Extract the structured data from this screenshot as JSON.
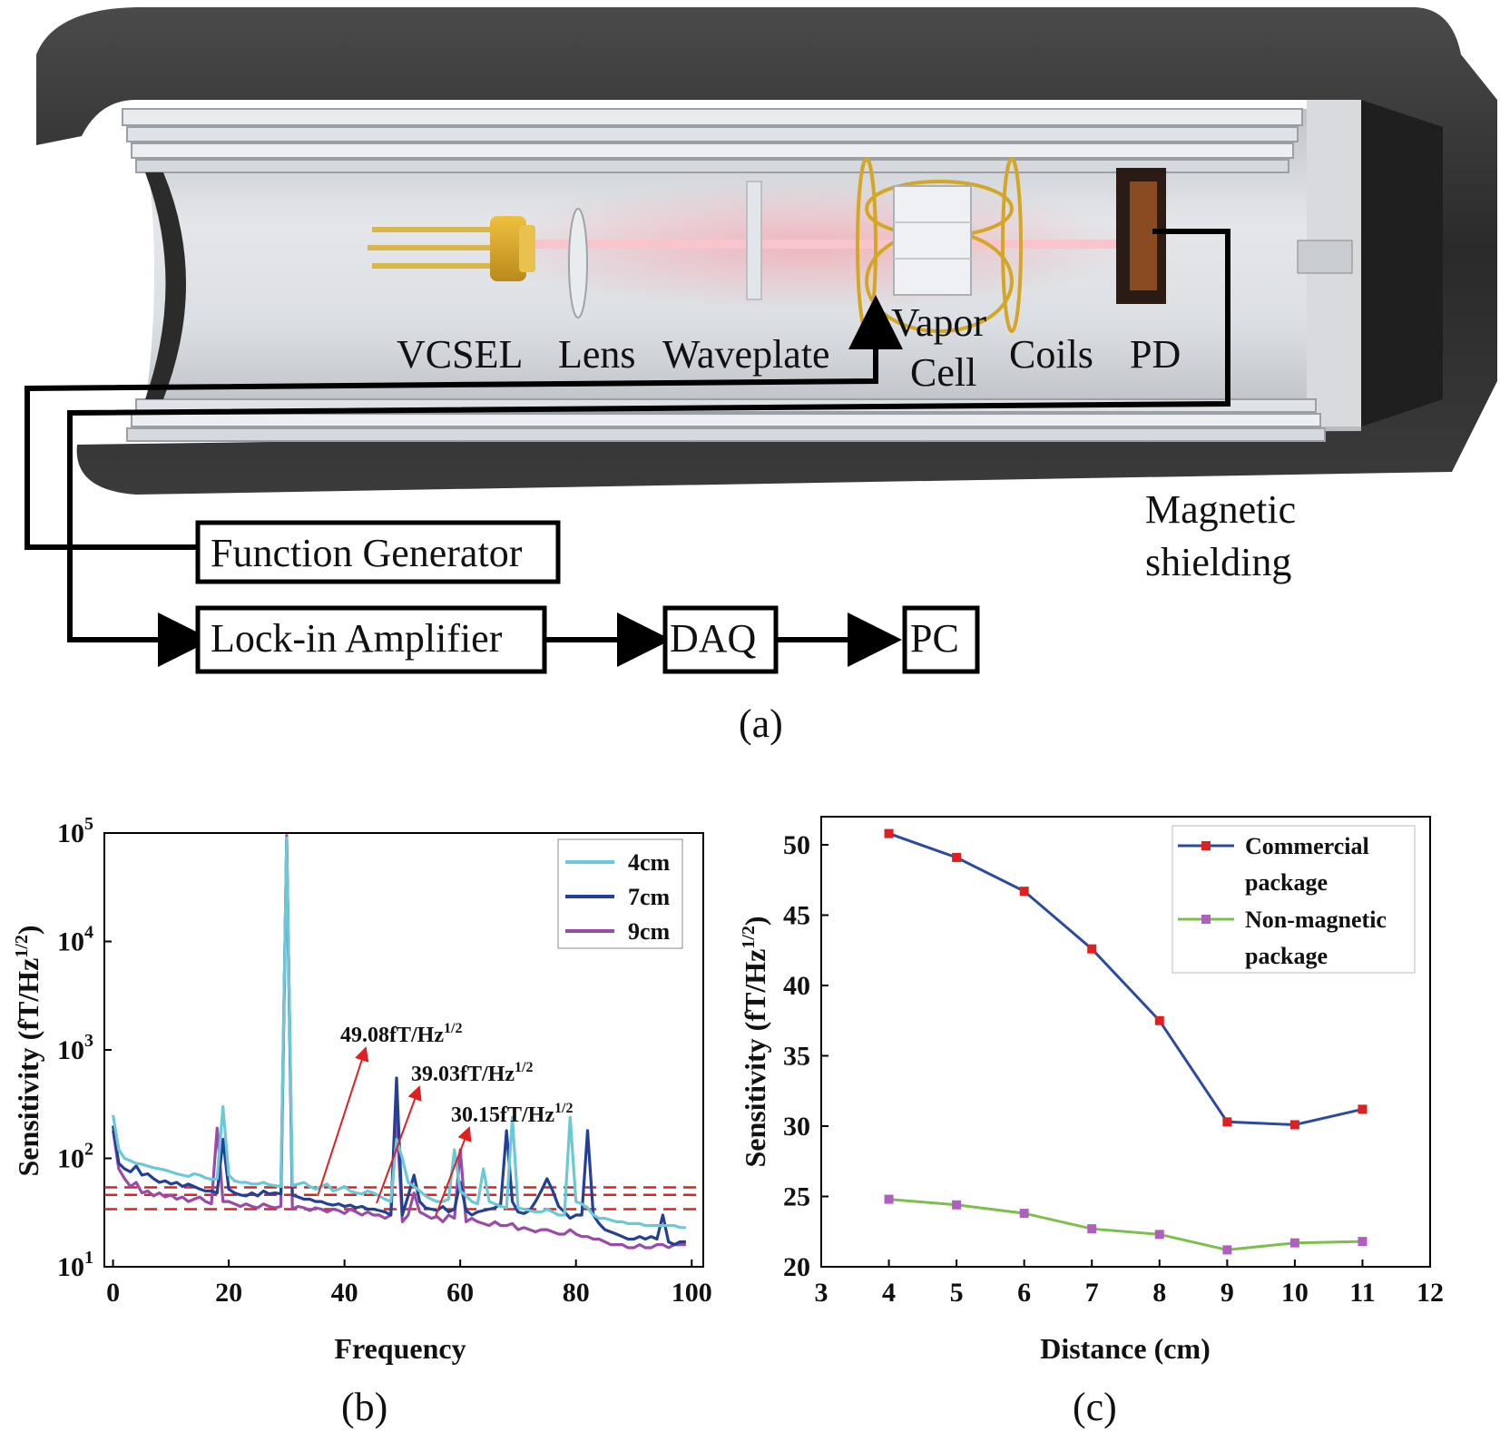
{
  "panel_a": {
    "component_labels": [
      "VCSEL",
      "Lens",
      "Waveplate",
      "Vapor",
      "Cell",
      "Coils",
      "PD"
    ],
    "shield_label": [
      "Magnetic",
      "shielding"
    ],
    "boxes": {
      "function_generator": "Function Generator",
      "lock_in": "Lock-in Amplifier",
      "daq": "DAQ",
      "pc": "PC"
    },
    "caption": "(a)"
  },
  "panel_b_caption": "(b)",
  "panel_c_caption": "(c)",
  "chart_data": [
    {
      "type": "line",
      "panel": "(b)",
      "xlabel": "Frequency",
      "ylabel": "Sensitivity (fT/Hz1/2)",
      "yscale": "log",
      "xlim": [
        0,
        100
      ],
      "ylim": [
        10,
        100000
      ],
      "xticks": [
        "0",
        "20",
        "40",
        "60",
        "80",
        "100"
      ],
      "yticks": [
        {
          "base": "10",
          "exp": "1"
        },
        {
          "base": "10",
          "exp": "2"
        },
        {
          "base": "10",
          "exp": "3"
        },
        {
          "base": "10",
          "exp": "4"
        },
        {
          "base": "10",
          "exp": "5"
        }
      ],
      "legend": "top-right",
      "annotations": [
        {
          "text": "49.08fT/Hz",
          "sup": "1/2"
        },
        {
          "text": "39.03fT/Hz",
          "sup": "1/2"
        },
        {
          "text": "30.15fT/Hz",
          "sup": "1/2"
        }
      ],
      "reference_levels": [
        54,
        46,
        34
      ],
      "series": [
        {
          "name": "4cm",
          "color": "#6ac9d6",
          "x": [
            0,
            1,
            2,
            3,
            4,
            5,
            6,
            7,
            8,
            9,
            10,
            11,
            12,
            13,
            14,
            15,
            16,
            17,
            18,
            19,
            20,
            21,
            22,
            23,
            24,
            25,
            26,
            27,
            28,
            29,
            30,
            31,
            32,
            33,
            34,
            35,
            36,
            37,
            38,
            39,
            40,
            41,
            42,
            43,
            44,
            45,
            46,
            47,
            48,
            49,
            50,
            51,
            52,
            53,
            54,
            55,
            56,
            57,
            58,
            59,
            60,
            61,
            62,
            63,
            64,
            65,
            66,
            67,
            68,
            69,
            70,
            71,
            72,
            73,
            74,
            75,
            76,
            77,
            78,
            79,
            80,
            81,
            82,
            83,
            84,
            85,
            86,
            87,
            88,
            89,
            90,
            91,
            92,
            93,
            94,
            95,
            96,
            97,
            98,
            99
          ],
          "y": [
            250,
            120,
            100,
            95,
            90,
            88,
            85,
            82,
            80,
            78,
            75,
            72,
            70,
            68,
            72,
            70,
            66,
            64,
            65,
            300,
            70,
            62,
            60,
            60,
            58,
            58,
            60,
            57,
            56,
            55,
            90000,
            56,
            58,
            60,
            55,
            52,
            55,
            58,
            50,
            52,
            55,
            50,
            48,
            47,
            50,
            48,
            45,
            42,
            40,
            150,
            100,
            60,
            55,
            50,
            45,
            42,
            40,
            40,
            42,
            120,
            50,
            45,
            40,
            38,
            80,
            40,
            38,
            36,
            35,
            240,
            35,
            34,
            33,
            32,
            32,
            34,
            32,
            30,
            30,
            240,
            40,
            38,
            35,
            30,
            28,
            28,
            27,
            26,
            26,
            25,
            25,
            25,
            24,
            24,
            24,
            24,
            24,
            24,
            23,
            23
          ]
        },
        {
          "name": "7cm",
          "color": "#243f96",
          "x": [
            0,
            1,
            2,
            3,
            4,
            5,
            6,
            7,
            8,
            9,
            10,
            11,
            12,
            13,
            14,
            15,
            16,
            17,
            18,
            19,
            20,
            21,
            22,
            23,
            24,
            25,
            26,
            27,
            28,
            29,
            30,
            31,
            32,
            33,
            34,
            35,
            36,
            37,
            38,
            39,
            40,
            41,
            42,
            43,
            44,
            45,
            46,
            47,
            48,
            49,
            50,
            51,
            52,
            53,
            54,
            55,
            56,
            57,
            58,
            59,
            60,
            61,
            62,
            63,
            64,
            65,
            66,
            67,
            68,
            69,
            70,
            71,
            72,
            73,
            74,
            75,
            76,
            77,
            78,
            79,
            80,
            81,
            82,
            83,
            84,
            85,
            86,
            87,
            88,
            89,
            90,
            91,
            92,
            93,
            94,
            95,
            96,
            97,
            98,
            99
          ],
          "y": [
            200,
            90,
            80,
            75,
            85,
            70,
            72,
            65,
            60,
            62,
            58,
            60,
            55,
            58,
            55,
            52,
            50,
            50,
            48,
            150,
            52,
            48,
            46,
            45,
            48,
            45,
            50,
            47,
            48,
            47,
            85000,
            46,
            44,
            42,
            42,
            40,
            40,
            38,
            37,
            38,
            36,
            37,
            35,
            36,
            34,
            34,
            33,
            32,
            30,
            550,
            30,
            45,
            70,
            40,
            35,
            34,
            33,
            36,
            32,
            34,
            60,
            33,
            30,
            32,
            33,
            34,
            35,
            38,
            180,
            40,
            32,
            31,
            33,
            40,
            50,
            65,
            50,
            36,
            32,
            28,
            30,
            30,
            180,
            30,
            25,
            22,
            21,
            20,
            19,
            18,
            18,
            19,
            18,
            19,
            18,
            30,
            17,
            16,
            17,
            17
          ]
        },
        {
          "name": "9cm",
          "color": "#9b4aa8",
          "x": [
            0,
            1,
            2,
            3,
            4,
            5,
            6,
            7,
            8,
            9,
            10,
            11,
            12,
            13,
            14,
            15,
            16,
            17,
            18,
            19,
            20,
            21,
            22,
            23,
            24,
            25,
            26,
            27,
            28,
            29,
            30,
            31,
            32,
            33,
            34,
            35,
            36,
            37,
            38,
            39,
            40,
            41,
            42,
            43,
            44,
            45,
            46,
            47,
            48,
            49,
            50,
            51,
            52,
            53,
            54,
            55,
            56,
            57,
            58,
            59,
            60,
            61,
            62,
            63,
            64,
            65,
            66,
            67,
            68,
            69,
            70,
            71,
            72,
            73,
            74,
            75,
            76,
            77,
            78,
            79,
            80,
            81,
            82,
            83,
            84,
            85,
            86,
            87,
            88,
            89,
            90,
            91,
            92,
            93,
            94,
            95,
            96,
            97,
            98,
            99
          ],
          "y": [
            180,
            80,
            65,
            55,
            60,
            48,
            50,
            45,
            48,
            44,
            46,
            42,
            44,
            40,
            42,
            44,
            40,
            38,
            190,
            40,
            40,
            38,
            36,
            38,
            36,
            35,
            38,
            36,
            35,
            36,
            95000,
            34,
            36,
            35,
            33,
            35,
            34,
            32,
            34,
            33,
            31,
            34,
            32,
            30,
            32,
            30,
            30,
            28,
            30,
            250,
            26,
            30,
            48,
            32,
            30,
            28,
            29,
            26,
            30,
            28,
            120,
            26,
            28,
            26,
            25,
            24,
            26,
            24,
            24,
            25,
            22,
            23,
            22,
            21,
            22,
            22,
            21,
            20,
            20,
            22,
            20,
            19,
            19,
            18,
            18,
            17,
            16,
            16,
            16,
            15,
            15,
            16,
            15,
            15,
            16,
            16,
            15,
            16,
            16,
            16
          ]
        }
      ]
    },
    {
      "type": "line",
      "panel": "(c)",
      "xlabel": "Distance (cm)",
      "ylabel": "Sensitivity (fT/Hz1/2)",
      "xlim": [
        3,
        12
      ],
      "ylim": [
        20,
        52
      ],
      "xticks": [
        "3",
        "4",
        "5",
        "6",
        "7",
        "8",
        "9",
        "10",
        "11",
        "12"
      ],
      "yticks": [
        "20",
        "25",
        "30",
        "35",
        "40",
        "45",
        "50"
      ],
      "legend": "top-right",
      "series": [
        {
          "name": "Commercial package",
          "legend_lines": [
            "Commercial",
            "package"
          ],
          "color": "#2b4ba0",
          "marker_color": "#e02020",
          "x": [
            4,
            5,
            6,
            7,
            8,
            9,
            10,
            11
          ],
          "y": [
            50.8,
            49.1,
            46.7,
            42.6,
            37.5,
            30.3,
            30.1,
            31.2
          ]
        },
        {
          "name": "Non-magnetic package",
          "legend_lines": [
            "Non-magnetic",
            "package"
          ],
          "color": "#7cc04a",
          "marker_color": "#b05fc0",
          "x": [
            4,
            5,
            6,
            7,
            8,
            9,
            10,
            11
          ],
          "y": [
            24.8,
            24.4,
            23.8,
            22.7,
            22.3,
            21.2,
            21.7,
            21.8
          ]
        }
      ]
    }
  ]
}
